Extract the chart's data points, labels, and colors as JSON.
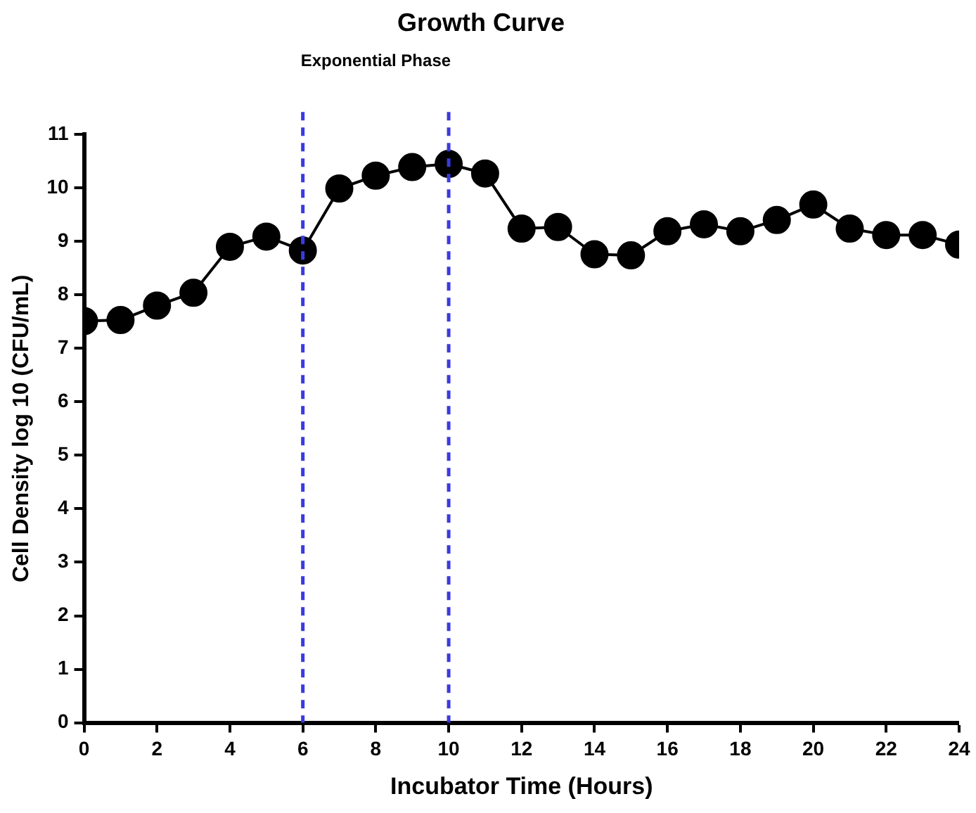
{
  "chart_data": {
    "type": "line",
    "title": "Growth Curve",
    "xlabel": "Incubator Time (Hours)",
    "ylabel": "Cell Density log 10 (CFU/mL)",
    "x": [
      0,
      1,
      2,
      3,
      4,
      5,
      6,
      7,
      8,
      9,
      10,
      11,
      12,
      13,
      14,
      15,
      16,
      17,
      18,
      19,
      20,
      21,
      22,
      23,
      24
    ],
    "series": [
      {
        "color": "#000000",
        "values": [
          7.51,
          7.53,
          7.8,
          8.04,
          8.9,
          9.09,
          8.83,
          9.99,
          10.23,
          10.39,
          10.45,
          10.27,
          9.24,
          9.27,
          8.76,
          8.74,
          9.19,
          9.32,
          9.19,
          9.4,
          9.69,
          9.24,
          9.12,
          9.12,
          8.94
        ]
      }
    ],
    "xlim": [
      0,
      24
    ],
    "xticks": [
      0,
      2,
      4,
      6,
      8,
      10,
      12,
      14,
      16,
      18,
      20,
      22,
      24
    ],
    "ylim": [
      0,
      11
    ],
    "yticks": [
      0,
      1,
      2,
      3,
      4,
      5,
      6,
      7,
      8,
      9,
      10,
      11
    ],
    "ref_lines": [
      {
        "axis": "x",
        "value": 6,
        "color": "#3a3ae0",
        "line_style": "dashed"
      },
      {
        "axis": "x",
        "value": 10,
        "color": "#3a3ae0",
        "line_style": "dashed"
      }
    ],
    "annotations": [
      "Exponential Phase"
    ],
    "grid": false,
    "legend": false,
    "marker": "circle",
    "line_style": "solid"
  }
}
